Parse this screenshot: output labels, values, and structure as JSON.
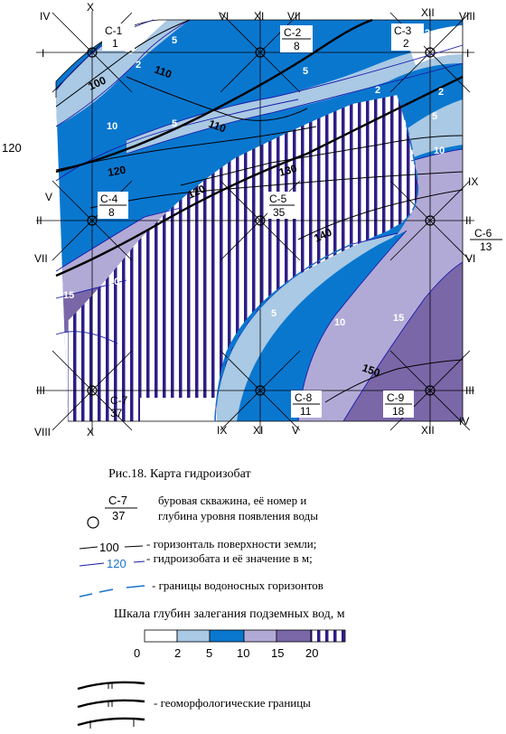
{
  "map": {
    "colors": {
      "d0_2": "#ffffff",
      "d2_5": "#a9c9e4",
      "d5_10": "#0a77cf",
      "d10_15": "#b2aad6",
      "d15_20": "#7a67a8",
      "d20plus": "#2e1e87",
      "contour_blue": "#1a1aa8",
      "boundary": "#1a73c9"
    },
    "grid_labels": {
      "top": [
        "IV",
        "X",
        "VI",
        "XI",
        "VII",
        "XII",
        "VIII"
      ],
      "left": [
        "I",
        "V",
        "II",
        "VII",
        "III",
        "VIII"
      ],
      "right": [
        "I",
        "IX",
        "II",
        "VI",
        "III",
        "IV"
      ],
      "bottom": [
        "X",
        "IX",
        "XI",
        "V",
        "XII"
      ]
    },
    "side_value": "120",
    "wells": [
      {
        "id": "С-1",
        "depth": "1"
      },
      {
        "id": "С-2",
        "depth": "8"
      },
      {
        "id": "С-3",
        "depth": "2"
      },
      {
        "id": "С-4",
        "depth": "8"
      },
      {
        "id": "С-5",
        "depth": "35"
      },
      {
        "id": "С-6",
        "depth": "13"
      },
      {
        "id": "С-7",
        "depth": "37"
      },
      {
        "id": "С-8",
        "depth": "11"
      },
      {
        "id": "С-9",
        "depth": "18"
      }
    ],
    "surface_contours": [
      "100",
      "110",
      "110",
      "120",
      "120",
      "130",
      "140",
      "150"
    ],
    "hydroisobaths": [
      "2",
      "2",
      "2",
      "2",
      "5",
      "5",
      "5",
      "5",
      "5",
      "10",
      "10",
      "10",
      "15",
      "15",
      "20"
    ]
  },
  "legend": {
    "caption": "Рис.18. Карта гидроизобат",
    "well_sample": {
      "id": "С-7",
      "depth": "37"
    },
    "well_desc_1": "буровая скважина, её номер и",
    "well_desc_2": "глубина уровня появления воды",
    "contour_sample_black": "100",
    "contour_sample_blue": "120",
    "contour_desc_1": "- горизонталь поверхности земли;",
    "contour_desc_2": "- гидроизобата и её значение в м;",
    "boundary_desc": "- границы водоносных горизонтов",
    "scale_title": "Шкала глубин залегания подземных вод, м",
    "scale_ticks": [
      "0",
      "2",
      "5",
      "10",
      "15",
      "20"
    ],
    "geomorph_desc": "- геоморфологические границы"
  }
}
